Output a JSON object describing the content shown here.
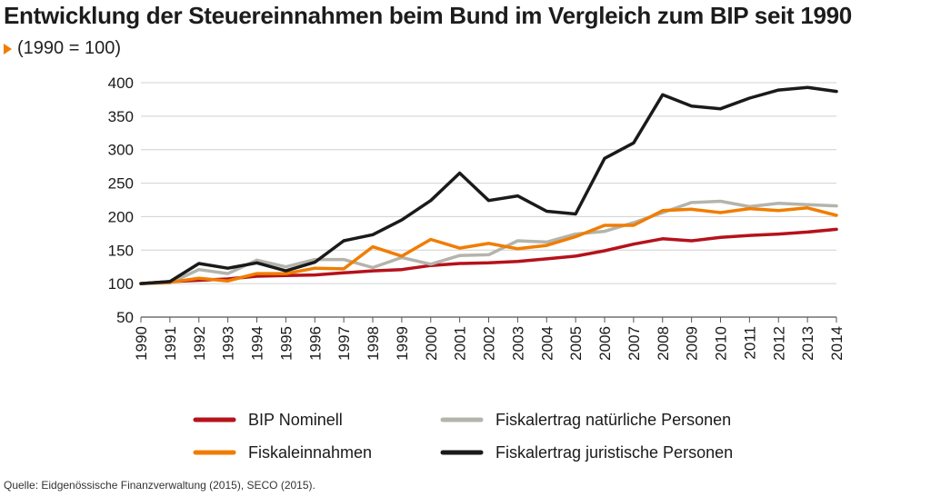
{
  "title": "Entwicklung der Steuereinnahmen beim Bund im Vergleich zum BIP seit 1990",
  "subtitle": "(1990 = 100)",
  "source": "Quelle: Eidgenössische Finanzverwaltung (2015), SECO (2015).",
  "chart_data": {
    "type": "line",
    "title": "Entwicklung der Steuereinnahmen beim Bund im Vergleich zum BIP seit 1990",
    "subtitle": "(1990 = 100)",
    "xlabel": "",
    "ylabel": "",
    "ylim": [
      50,
      400
    ],
    "yticks": [
      50,
      100,
      150,
      200,
      250,
      300,
      350,
      400
    ],
    "grid": "horizontal",
    "legend": "bottom",
    "categories": [
      "1990",
      "1991",
      "1992",
      "1993",
      "1994",
      "1995",
      "1996",
      "1997",
      "1998",
      "1999",
      "2000",
      "2001",
      "2002",
      "2003",
      "2004",
      "2005",
      "2006",
      "2007",
      "2008",
      "2009",
      "2010",
      "2011",
      "2012",
      "2013",
      "2014"
    ],
    "series": [
      {
        "name": "BIP Nominell",
        "color": "#b5121b",
        "values": [
          100,
          103,
          105,
          107,
          111,
          112,
          113,
          116,
          119,
          121,
          127,
          130,
          131,
          133,
          137,
          141,
          149,
          159,
          167,
          164,
          169,
          172,
          174,
          177,
          181
        ]
      },
      {
        "name": "Fiskalertrag natürliche Personen",
        "color": "#b4b4ac",
        "values": [
          100,
          101,
          121,
          115,
          135,
          125,
          136,
          136,
          124,
          139,
          129,
          142,
          143,
          164,
          162,
          174,
          178,
          191,
          206,
          221,
          223,
          215,
          220,
          218,
          216
        ]
      },
      {
        "name": "Fiskaleinnahmen",
        "color": "#f07d00",
        "values": [
          100,
          102,
          108,
          104,
          115,
          115,
          123,
          122,
          155,
          141,
          166,
          153,
          160,
          152,
          157,
          170,
          187,
          187,
          209,
          211,
          206,
          212,
          209,
          213,
          202
        ]
      },
      {
        "name": "Fiskalertrag juristische Personen",
        "color": "#1a1a1a",
        "values": [
          100,
          103,
          130,
          123,
          131,
          119,
          132,
          164,
          173,
          195,
          224,
          265,
          224,
          231,
          208,
          204,
          287,
          310,
          382,
          365,
          361,
          377,
          389,
          393,
          387
        ]
      }
    ]
  }
}
